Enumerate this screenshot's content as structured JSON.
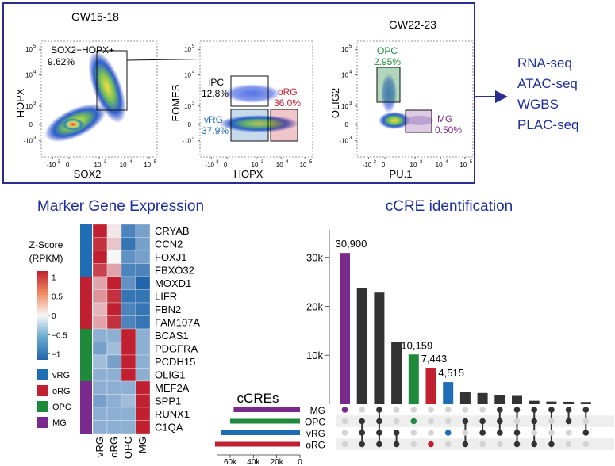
{
  "colors": {
    "frame": "#2a2f8f",
    "vRG": "#1f6db5",
    "oRG": "#c0202f",
    "OPC": "#1f8a3c",
    "MG": "#7a2a8c",
    "blue_text": "#1f2f9a",
    "bar_dark": "#333333"
  },
  "panelA": {
    "gate1": {
      "stage": "GW15-18",
      "xlabel": "SOX2",
      "ylabel": "HOPX",
      "gate_label": "SOX2+HOPX+",
      "gate_pct": "9.62%"
    },
    "gate2": {
      "xlabel": "HOPX",
      "ylabel": "EOMES",
      "ipc": {
        "name": "IPC",
        "pct": "12.8%"
      },
      "org": {
        "name": "oRG",
        "pct": "36.0%"
      },
      "vrg": {
        "name": "vRG",
        "pct": "37.9%"
      }
    },
    "gate3": {
      "stage": "GW22-23",
      "xlabel": "PU.1",
      "ylabel": "OLIG2",
      "opc": {
        "name": "OPC",
        "pct": "2.95%"
      },
      "mg": {
        "name": "MG",
        "pct": "0.50%"
      }
    },
    "ticks": {
      "x": [
        "-10",
        "0",
        "10",
        "10",
        "10"
      ],
      "x_exp": [
        "3",
        "",
        "3",
        "4",
        "5"
      ],
      "y": [
        "10",
        "10",
        "10",
        "0",
        "-10"
      ],
      "y_exp": [
        "5",
        "4",
        "3",
        "",
        "3"
      ]
    },
    "assays": [
      "RNA-seq",
      "ATAC-seq",
      "WGBS",
      "PLAC-seq"
    ]
  },
  "heatmap": {
    "title": "Marker Gene Expression",
    "legend_title": [
      "Z-Score",
      "(RPKM)"
    ],
    "scale_ticks": [
      "1",
      "0.5",
      "0",
      "−0.5",
      "−1"
    ],
    "scale_values": [
      1,
      0.5,
      0,
      -0.5,
      -1
    ],
    "cell_types": [
      "vRG",
      "oRG",
      "OPC",
      "MG"
    ],
    "genes": [
      "CRYAB",
      "CCN2",
      "FOXJ1",
      "FBXO32",
      "MOXD1",
      "LIFR",
      "FBN2",
      "FAM107A",
      "BCAS1",
      "PDGFRA",
      "PCDH15",
      "OLIG1",
      "MEF2A",
      "SPP1",
      "RUNX1",
      "C1QA"
    ],
    "gene_group": [
      "vRG",
      "vRG",
      "vRG",
      "vRG",
      "oRG",
      "oRG",
      "oRG",
      "oRG",
      "OPC",
      "OPC",
      "OPC",
      "OPC",
      "MG",
      "MG",
      "MG",
      "MG"
    ],
    "z": [
      [
        1.3,
        0.1,
        -0.8,
        -0.6
      ],
      [
        1.2,
        0.3,
        -0.9,
        -0.6
      ],
      [
        1.3,
        0.0,
        -0.7,
        -0.6
      ],
      [
        1.1,
        0.5,
        -0.8,
        -0.8
      ],
      [
        0.5,
        1.3,
        -0.7,
        -1.0
      ],
      [
        0.6,
        1.2,
        -0.9,
        -0.9
      ],
      [
        0.4,
        1.3,
        -0.8,
        -0.9
      ],
      [
        0.5,
        1.2,
        -0.8,
        -0.9
      ],
      [
        -0.5,
        -0.5,
        1.5,
        -0.5
      ],
      [
        -0.6,
        -0.4,
        1.5,
        -0.5
      ],
      [
        -0.4,
        -0.6,
        1.5,
        -0.5
      ],
      [
        -0.5,
        -0.5,
        1.5,
        -0.5
      ],
      [
        -0.5,
        -0.5,
        -0.5,
        1.5
      ],
      [
        -0.6,
        -0.5,
        -0.4,
        1.5
      ],
      [
        -0.5,
        -0.5,
        -0.5,
        1.5
      ],
      [
        -0.5,
        -0.5,
        -0.5,
        1.5
      ]
    ]
  },
  "chart_data": {
    "type": "bar",
    "title": "cCRE identification",
    "top_bars": [
      30900,
      23800,
      22800,
      12700,
      10159,
      7443,
      4515,
      2500,
      2300,
      1900,
      1700,
      700,
      550,
      500,
      450
    ],
    "top_bar_colors": [
      "MG",
      "dark",
      "dark",
      "dark",
      "OPC",
      "oRG",
      "vRG",
      "dark",
      "dark",
      "dark",
      "dark",
      "dark",
      "dark",
      "dark",
      "dark"
    ],
    "labels_on_bars": [
      "30,900",
      "",
      "",
      "",
      "10,159",
      "7,443",
      "4,515",
      "",
      "",
      "",
      "",
      "",
      "",
      "",
      ""
    ],
    "yticks": [
      "10k",
      "20k",
      "30k"
    ],
    "ytick_values": [
      10000,
      20000,
      30000
    ],
    "ylim": [
      0,
      34000
    ],
    "sets": [
      "MG",
      "OPC",
      "vRG",
      "oRG"
    ],
    "set_title": "cCREs",
    "set_sizes": [
      57000,
      60000,
      68000,
      73000
    ],
    "set_xticks": [
      "60k",
      "40k",
      "20k",
      "0"
    ],
    "set_xtick_values": [
      60000,
      40000,
      20000,
      0
    ],
    "set_xlim": [
      0,
      75000
    ],
    "membership": [
      [
        0
      ],
      [
        1,
        2,
        3
      ],
      [
        0,
        1,
        2,
        3
      ],
      [
        2,
        3
      ],
      [
        1
      ],
      [
        3
      ],
      [
        2
      ],
      [
        1,
        3
      ],
      [
        1,
        2
      ],
      [
        0,
        1,
        2
      ],
      [
        0,
        2,
        3
      ],
      [
        0,
        1,
        3
      ],
      [
        0,
        3
      ],
      [
        0,
        1
      ],
      [
        0,
        2
      ]
    ]
  }
}
